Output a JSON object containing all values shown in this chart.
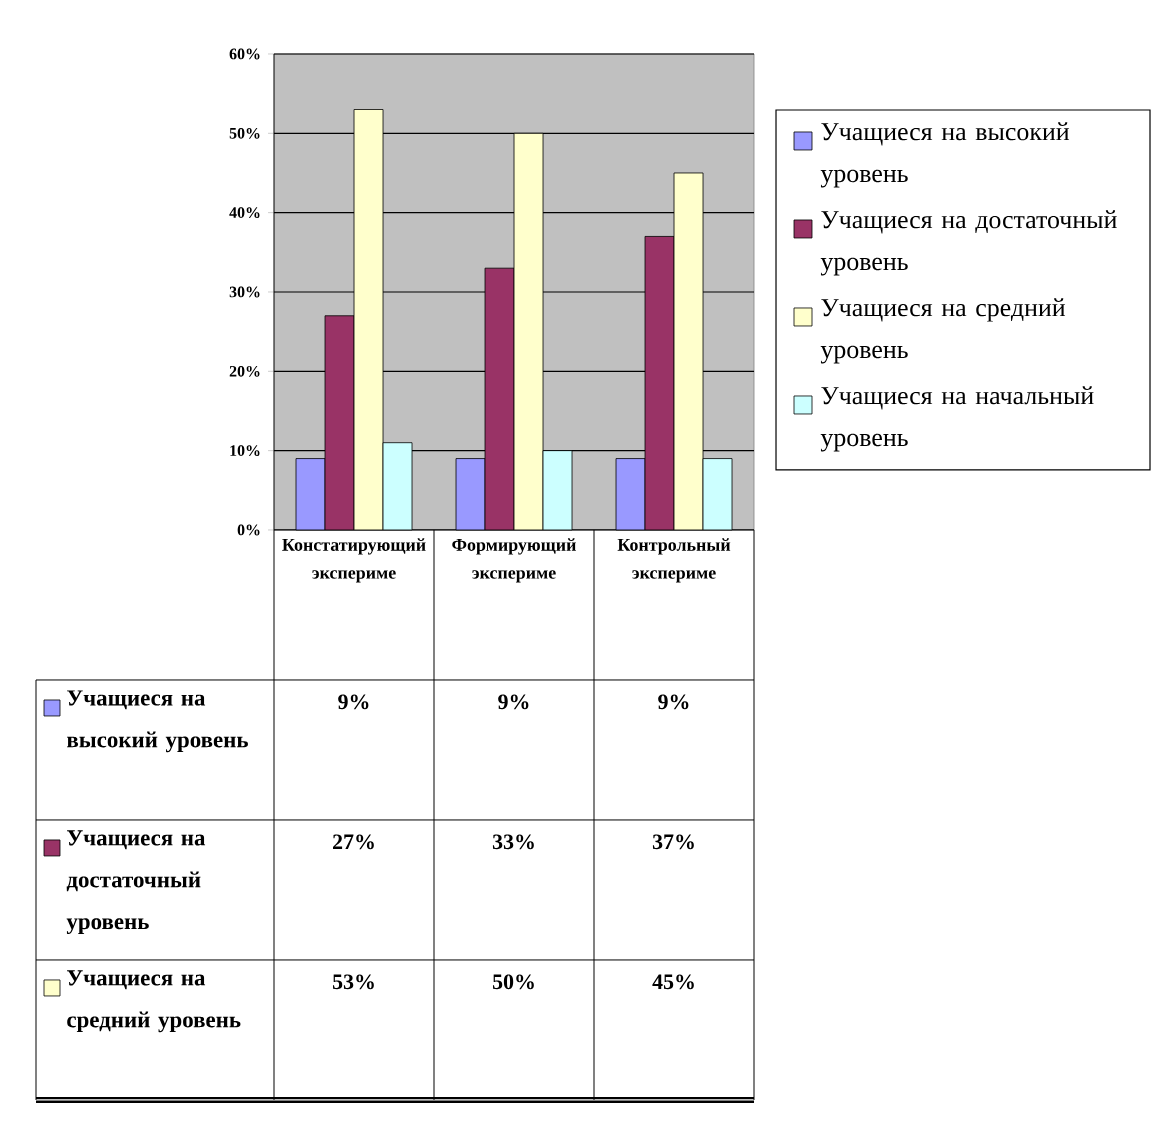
{
  "chart_data": {
    "type": "bar",
    "categories": [
      "Констатирующий экспериме",
      "Формирующий экспериме",
      "Контрольный экспериме"
    ],
    "series": [
      {
        "name": "Учащиеся на высокий уровень",
        "color": "#9999ff",
        "values": [
          9,
          9,
          9
        ],
        "value_labels": [
          "9%",
          "9%",
          "9%"
        ]
      },
      {
        "name": "Учащиеся на достаточный уровень",
        "color": "#993366",
        "values": [
          27,
          33,
          37
        ],
        "value_labels": [
          "27%",
          "33%",
          "37%"
        ]
      },
      {
        "name": "Учащиеся на средний уровень",
        "color": "#ffffcc",
        "values": [
          53,
          50,
          45
        ],
        "value_labels": [
          "53%",
          "50%",
          "45%"
        ]
      },
      {
        "name": "Учащиеся на начальный уровень",
        "color": "#ccffff",
        "values": [
          11,
          10,
          9
        ]
      }
    ],
    "ylim": [
      0,
      60
    ],
    "yticks": [
      {
        "value": 0,
        "label": "0%"
      },
      {
        "value": 10,
        "label": "10%"
      },
      {
        "value": 20,
        "label": "20%"
      },
      {
        "value": 30,
        "label": "30%"
      },
      {
        "value": 40,
        "label": "40%"
      },
      {
        "value": 50,
        "label": "50%"
      },
      {
        "value": 60,
        "label": "60%"
      }
    ],
    "grid": "y",
    "legend": "right"
  }
}
